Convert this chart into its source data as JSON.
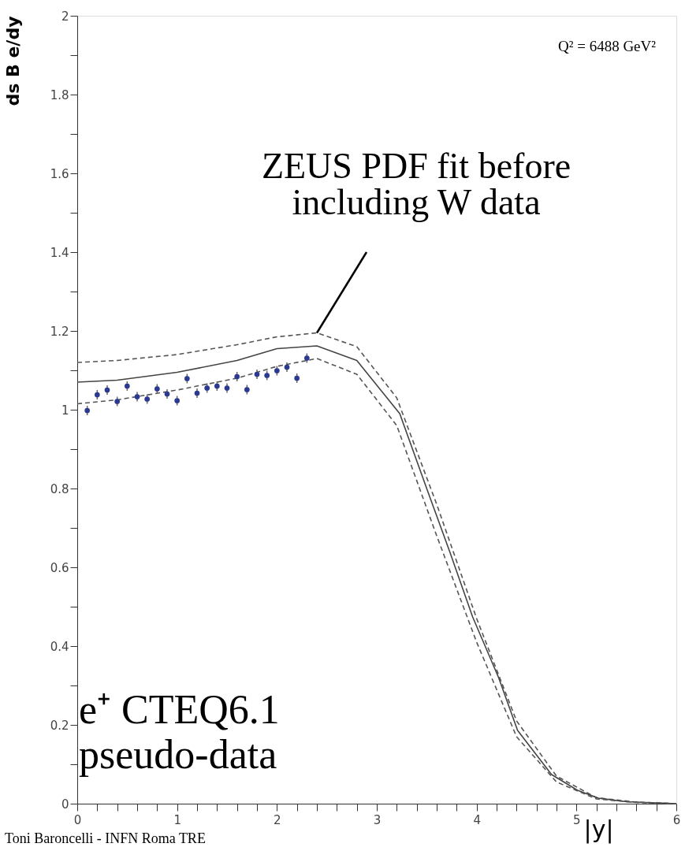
{
  "chart_data": {
    "type": "line",
    "xlabel": "|y|",
    "ylabel": "ds B e/dy",
    "xlim": [
      0,
      6
    ],
    "ylim": [
      0,
      2
    ],
    "xticks": [
      0,
      {
        "value": 0.2,
        "label": null
      },
      {
        "value": 0.4,
        "label": null
      },
      {
        "value": 0.6,
        "label": null
      },
      {
        "value": 0.8,
        "label": null
      },
      1,
      {
        "value": 1.2,
        "label": null
      },
      {
        "value": 1.4,
        "label": null
      },
      {
        "value": 1.6,
        "label": null
      },
      {
        "value": 1.8,
        "label": null
      },
      2,
      {
        "value": 2.2,
        "label": null
      },
      {
        "value": 2.4,
        "label": null
      },
      {
        "value": 2.6,
        "label": null
      },
      {
        "value": 2.8,
        "label": null
      },
      3,
      {
        "value": 3.2,
        "label": null
      },
      {
        "value": 3.4,
        "label": null
      },
      {
        "value": 3.6,
        "label": null
      },
      {
        "value": 3.8,
        "label": null
      },
      4,
      {
        "value": 4.2,
        "label": null
      },
      {
        "value": 4.4,
        "label": null
      },
      {
        "value": 4.6,
        "label": null
      },
      {
        "value": 4.8,
        "label": null
      },
      5,
      {
        "value": 5.2,
        "label": null
      },
      {
        "value": 5.4,
        "label": null
      },
      {
        "value": 5.6,
        "label": null
      },
      {
        "value": 5.8,
        "label": null
      },
      6
    ],
    "yticks": [
      0,
      {
        "value": 0.1,
        "label": null
      },
      0.2,
      {
        "value": 0.3,
        "label": null
      },
      0.4,
      {
        "value": 0.5,
        "label": null
      },
      0.6,
      {
        "value": 0.7,
        "label": null
      },
      0.8,
      {
        "value": 0.9,
        "label": null
      },
      1,
      {
        "value": 1.1,
        "label": null
      },
      1.2,
      {
        "value": 1.3,
        "label": null
      },
      1.4,
      {
        "value": 1.5,
        "label": null
      },
      1.6,
      {
        "value": 1.7,
        "label": null
      },
      1.8,
      {
        "value": 1.9,
        "label": null
      },
      2
    ],
    "grid": false,
    "series": [
      {
        "color": "#555555",
        "line_style": "dashed",
        "x": [
          0,
          0.4,
          1,
          1.6,
          2,
          2.4,
          2.8,
          3.2,
          3.6,
          4,
          4.4,
          4.8,
          5.2,
          5.6,
          6
        ],
        "values": [
          1.12,
          1.125,
          1.14,
          1.165,
          1.185,
          1.195,
          1.16,
          1.03,
          0.76,
          0.47,
          0.21,
          0.07,
          0.015,
          0.004,
          0
        ]
      },
      {
        "color": "#444444",
        "line_style": "solid",
        "x": [
          0,
          0.4,
          1,
          1.6,
          2,
          2.4,
          2.8,
          3.23,
          3.5,
          3.73,
          3.96,
          4.22,
          4.41,
          4.75,
          5.01,
          5.22,
          5.5,
          6
        ],
        "values": [
          1.07,
          1.075,
          1.095,
          1.125,
          1.155,
          1.162,
          1.125,
          0.99,
          0.8,
          0.64,
          0.474,
          0.32,
          0.186,
          0.074,
          0.034,
          0.014,
          0.005,
          0
        ]
      },
      {
        "color": "#555555",
        "line_style": "dashed",
        "x": [
          0,
          0.4,
          1,
          1.6,
          2,
          2.4,
          2.8,
          3.2,
          3.6,
          4,
          4.4,
          4.8,
          5.2,
          5.6,
          6
        ],
        "values": [
          1.015,
          1.025,
          1.05,
          1.08,
          1.11,
          1.13,
          1.09,
          0.96,
          0.68,
          0.41,
          0.17,
          0.055,
          0.012,
          0.003,
          0
        ]
      },
      {
        "type": "scatter",
        "color": "#2b3990",
        "marker": "circle",
        "x": [
          0.1,
          0.2,
          0.3,
          0.4,
          0.5,
          0.6,
          0.7,
          0.8,
          0.9,
          1.0,
          1.1,
          1.2,
          1.3,
          1.4,
          1.5,
          1.6,
          1.7,
          1.8,
          1.9,
          2.0,
          2.1,
          2.2,
          2.3
        ],
        "values": [
          0.998,
          1.038,
          1.05,
          1.021,
          1.06,
          1.033,
          1.027,
          1.053,
          1.04,
          1.023,
          1.079,
          1.042,
          1.055,
          1.06,
          1.055,
          1.084,
          1.051,
          1.09,
          1.087,
          1.099,
          1.108,
          1.08,
          1.131
        ],
        "errors": [
          0.012,
          0.012,
          0.012,
          0.012,
          0.012,
          0.012,
          0.012,
          0.012,
          0.012,
          0.012,
          0.012,
          0.012,
          0.012,
          0.012,
          0.012,
          0.012,
          0.012,
          0.012,
          0.012,
          0.012,
          0.012,
          0.012,
          0.012
        ]
      }
    ],
    "annotations": [
      "Q² = 6488 GeV²",
      {
        "text": "ZEUS PDF fit before\nincluding W data",
        "x": 2.4,
        "y": 1.195
      },
      "e⁺ CTEQ6.1\npseudo-data",
      "Toni Baroncelli - INFN Roma TRE"
    ]
  }
}
